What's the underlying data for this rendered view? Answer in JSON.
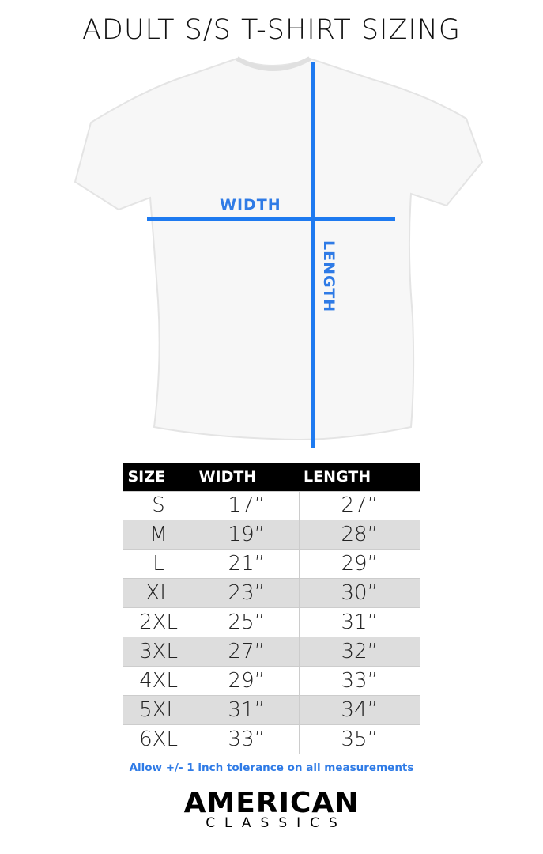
{
  "title": "ADULT S/S T-SHIRT SIZING",
  "diagram": {
    "width_label": "WIDTH",
    "length_label": "LENGTH",
    "line_color": "#1e7af0"
  },
  "table": {
    "headers": [
      "SIZE",
      "WIDTH",
      "LENGTH"
    ],
    "rows": [
      [
        "S",
        "17”",
        "27”"
      ],
      [
        "M",
        "19”",
        "28”"
      ],
      [
        "L",
        "21”",
        "29”"
      ],
      [
        "XL",
        "23”",
        "30”"
      ],
      [
        "2XL",
        "25”",
        "31”"
      ],
      [
        "3XL",
        "27”",
        "32”"
      ],
      [
        "4XL",
        "29”",
        "33”"
      ],
      [
        "5XL",
        "31”",
        "34”"
      ],
      [
        "6XL",
        "33”",
        "35”"
      ]
    ]
  },
  "note": "Allow +/- 1 inch tolerance on all measurements",
  "brand": {
    "line1": "AMERICAN",
    "line2": "CLASSICS"
  }
}
